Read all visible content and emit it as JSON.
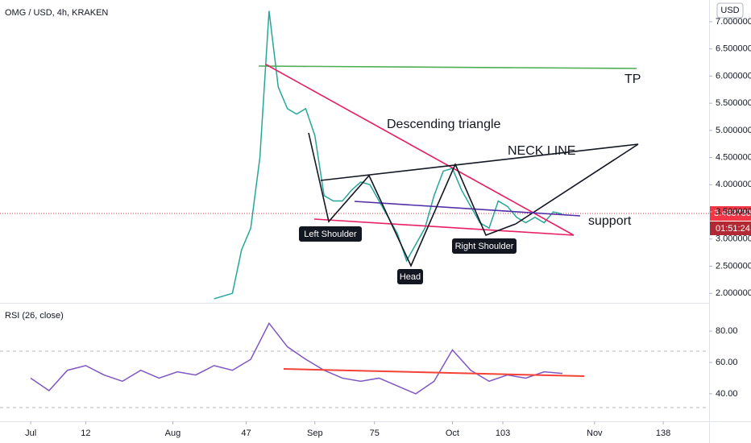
{
  "header": {
    "symbol": "OMG / USD, 4h, KRAKEN",
    "currency_button": "USD",
    "last_price_label": "3.463730",
    "countdown": "01:51:24"
  },
  "annotations": {
    "descending": "Descending triangle",
    "neck": "NECK LINE",
    "tp": "TP",
    "support": "support",
    "left_shoulder": "Left Shoulder",
    "head": "Head",
    "right_shoulder": "Right Shoulder"
  },
  "chart_data": [
    {
      "type": "line",
      "color": "#26a69a",
      "x": [
        40,
        42,
        44,
        46,
        48,
        50,
        52,
        54,
        56,
        58,
        60,
        62,
        64,
        66,
        68,
        70,
        72,
        74,
        76,
        78,
        80,
        82,
        84,
        86,
        88,
        90,
        92,
        94,
        96,
        98,
        100,
        102,
        104,
        106,
        108,
        110,
        112,
        114,
        116
      ],
      "values": [
        1.9,
        1.95,
        2.0,
        2.8,
        3.2,
        4.5,
        7.2,
        5.8,
        5.4,
        5.3,
        5.4,
        4.9,
        3.8,
        3.7,
        3.7,
        3.9,
        4.05,
        4.0,
        3.7,
        3.4,
        3.1,
        2.6,
        2.9,
        3.2,
        3.8,
        4.25,
        4.3,
        3.9,
        3.6,
        3.3,
        3.2,
        3.7,
        3.6,
        3.4,
        3.3,
        3.4,
        3.3,
        3.5,
        3.46
      ],
      "xlim": [
        -6.7,
        148
      ],
      "ylim": [
        1.84,
        7.4
      ],
      "yticks": [
        {
          "value": 2,
          "label": "2.000000"
        },
        {
          "value": 2.5,
          "label": "2.500000"
        },
        {
          "value": 3,
          "label": "3.000000"
        },
        {
          "value": 3.5,
          "label": "3.500000"
        },
        {
          "value": 4,
          "label": "4.000000"
        },
        {
          "value": 4.5,
          "label": "4.500000"
        },
        {
          "value": 5,
          "label": "5.000000"
        },
        {
          "value": 5.5,
          "label": "5.500000"
        },
        {
          "value": 6,
          "label": "6.000000"
        },
        {
          "value": 6.5,
          "label": "6.500000"
        },
        {
          "value": 7,
          "label": "7.000000"
        }
      ]
    },
    {
      "type": "line",
      "title": "RSI (26, close)",
      "color": "#7e57c2",
      "x": [
        0,
        4,
        8,
        12,
        16,
        20,
        24,
        28,
        32,
        36,
        40,
        44,
        48,
        52,
        56,
        60,
        64,
        68,
        72,
        76,
        80,
        84,
        88,
        92,
        96,
        100,
        104,
        108,
        112,
        116
      ],
      "values": [
        50,
        42,
        55,
        58,
        52,
        48,
        55,
        50,
        54,
        52,
        58,
        55,
        62,
        85,
        70,
        62,
        55,
        50,
        48,
        50,
        45,
        40,
        48,
        68,
        55,
        48,
        52,
        50,
        54,
        53
      ],
      "xlim": [
        -6.7,
        148
      ],
      "ylim": [
        23,
        97
      ],
      "yticks": [
        {
          "value": 40,
          "label": "40.00"
        },
        {
          "value": 60,
          "label": "60.00"
        },
        {
          "value": 80,
          "label": "80.00"
        }
      ],
      "xticks": [
        {
          "value": 0,
          "label": "Jul"
        },
        12,
        {
          "value": 31,
          "label": "Aug"
        },
        47,
        {
          "value": 62,
          "label": "Sep"
        },
        75,
        {
          "value": 92,
          "label": "Oct"
        },
        103,
        {
          "value": 123,
          "label": "Nov"
        },
        138
      ]
    }
  ]
}
